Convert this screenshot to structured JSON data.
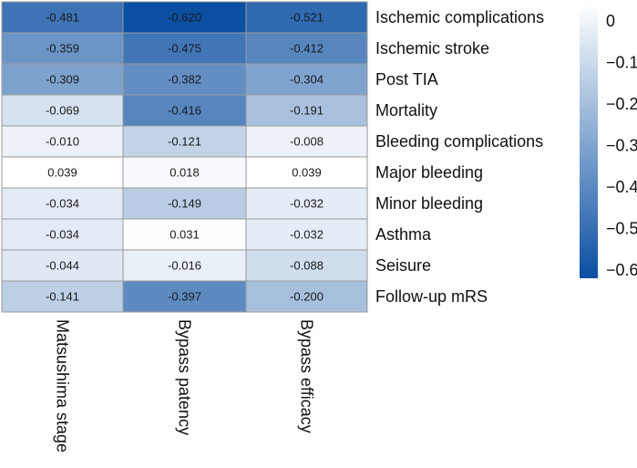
{
  "chart_data": {
    "type": "heatmap",
    "title": "",
    "columns": [
      "Matsushima stage",
      "Bypass patency",
      "Bypass efficacy"
    ],
    "rows": [
      "Ischemic complications",
      "Ischemic stroke",
      "Post TIA",
      "Mortality",
      "Bleeding complications",
      "Major bleeding",
      "Minor bleeding",
      "Asthma",
      "Seisure",
      "Follow-up mRS"
    ],
    "values": [
      [
        -0.481,
        -0.62,
        -0.521
      ],
      [
        -0.359,
        -0.475,
        -0.412
      ],
      [
        -0.309,
        -0.382,
        -0.304
      ],
      [
        -0.069,
        -0.416,
        -0.191
      ],
      [
        -0.01,
        -0.121,
        -0.008
      ],
      [
        0.039,
        0.018,
        0.039
      ],
      [
        -0.034,
        -0.149,
        -0.032
      ],
      [
        -0.034,
        0.031,
        -0.032
      ],
      [
        -0.044,
        -0.016,
        -0.088
      ],
      [
        -0.141,
        -0.397,
        -0.2
      ]
    ],
    "value_labels": [
      [
        "-0.481",
        "-0.620",
        "-0.521"
      ],
      [
        "-0.359",
        "-0.475",
        "-0.412"
      ],
      [
        "-0.309",
        "-0.382",
        "-0.304"
      ],
      [
        "-0.069",
        "-0.416",
        "-0.191"
      ],
      [
        "-0.010",
        "-0.121",
        "-0.008"
      ],
      [
        "0.039",
        "0.018",
        "0.039"
      ],
      [
        "-0.034",
        "-0.149",
        "-0.032"
      ],
      [
        "-0.034",
        "0.031",
        "-0.032"
      ],
      [
        "-0.044",
        "-0.016",
        "-0.088"
      ],
      [
        "-0.141",
        "-0.397",
        "-0.200"
      ]
    ],
    "colorbar": {
      "min": -0.62,
      "max": 0.04,
      "ticks": [
        0,
        -0.1,
        -0.2,
        -0.3,
        -0.4,
        -0.5,
        -0.6
      ],
      "tick_labels": [
        "0",
        "−0.1",
        "−0.2",
        "−0.3",
        "−0.4",
        "−0.5",
        "−0.6"
      ],
      "color_high": "#ffffff",
      "color_low": "#0a4fa2"
    },
    "grid_color": "#9a9a9a",
    "legend_position": "right"
  }
}
